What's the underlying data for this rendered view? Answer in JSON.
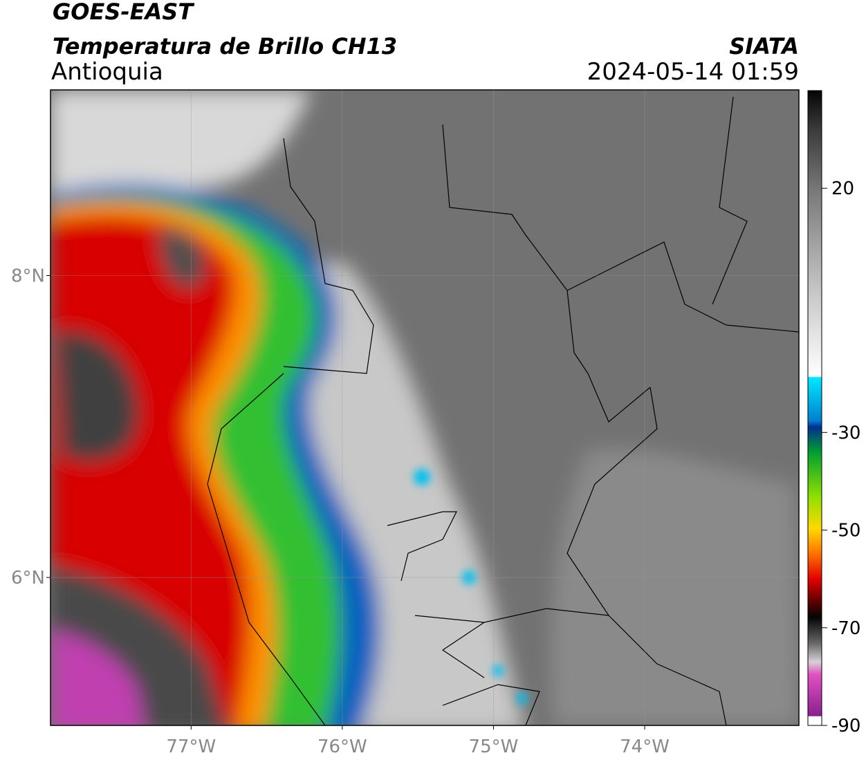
{
  "header": {
    "satellite": "GOES-EAST",
    "product": "Temperatura de Brillo CH13",
    "region": "Antioquia",
    "source": "SIATA",
    "datetime": "2024-05-14 01:59"
  },
  "map": {
    "xlim": [
      -77.93,
      -72.98
    ],
    "ylim": [
      5.02,
      9.23
    ],
    "xticks": [
      {
        "value": -77,
        "label": "77°W"
      },
      {
        "value": -76,
        "label": "76°W"
      },
      {
        "value": -75,
        "label": "75°W"
      },
      {
        "value": -74,
        "label": "74°W"
      }
    ],
    "yticks": [
      {
        "value": 6,
        "label": "6°N"
      },
      {
        "value": 8,
        "label": "8°N"
      }
    ],
    "grid": true
  },
  "colorbar": {
    "lim": [
      -90,
      40
    ],
    "ticks": [
      20,
      -30,
      -50,
      -70,
      -90
    ]
  }
}
